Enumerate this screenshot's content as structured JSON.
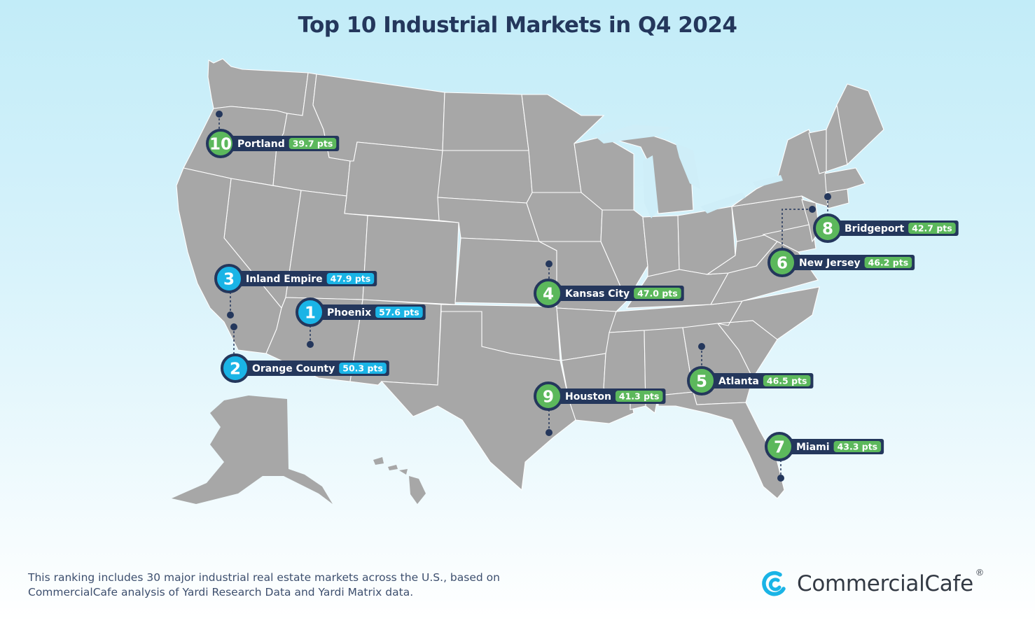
{
  "title": "Top 10 Industrial Markets in Q4 2024",
  "footnote_line1": "This ranking includes 30 major industrial real estate markets across the U.S., based on",
  "footnote_line2": "CommercialCafe analysis of Yardi Research Data and Yardi Matrix data.",
  "brand": {
    "name": "CommercialCafe",
    "registered": "®",
    "icon": "commercialcafe-logo-icon"
  },
  "colors": {
    "top3": "#1ab4e6",
    "rest": "#5cb85c",
    "label_bg": "#24375c",
    "land": "#a7a7a7"
  },
  "markets": [
    {
      "rank": "1",
      "city": "Phoenix",
      "points": "57.6 pts",
      "tier": "top"
    },
    {
      "rank": "2",
      "city": "Orange County",
      "points": "50.3 pts",
      "tier": "top"
    },
    {
      "rank": "3",
      "city": "Inland Empire",
      "points": "47.9 pts",
      "tier": "top"
    },
    {
      "rank": "4",
      "city": "Kansas City",
      "points": "47.0 pts",
      "tier": "rest"
    },
    {
      "rank": "5",
      "city": "Atlanta",
      "points": "46.5 pts",
      "tier": "rest"
    },
    {
      "rank": "6",
      "city": "New Jersey",
      "points": "46.2 pts",
      "tier": "rest"
    },
    {
      "rank": "7",
      "city": "Miami",
      "points": "43.3 pts",
      "tier": "rest"
    },
    {
      "rank": "8",
      "city": "Bridgeport",
      "points": "42.7 pts",
      "tier": "rest"
    },
    {
      "rank": "9",
      "city": "Houston",
      "points": "41.3 pts",
      "tier": "rest"
    },
    {
      "rank": "10",
      "city": "Portland",
      "points": "39.7 pts",
      "tier": "rest"
    }
  ]
}
